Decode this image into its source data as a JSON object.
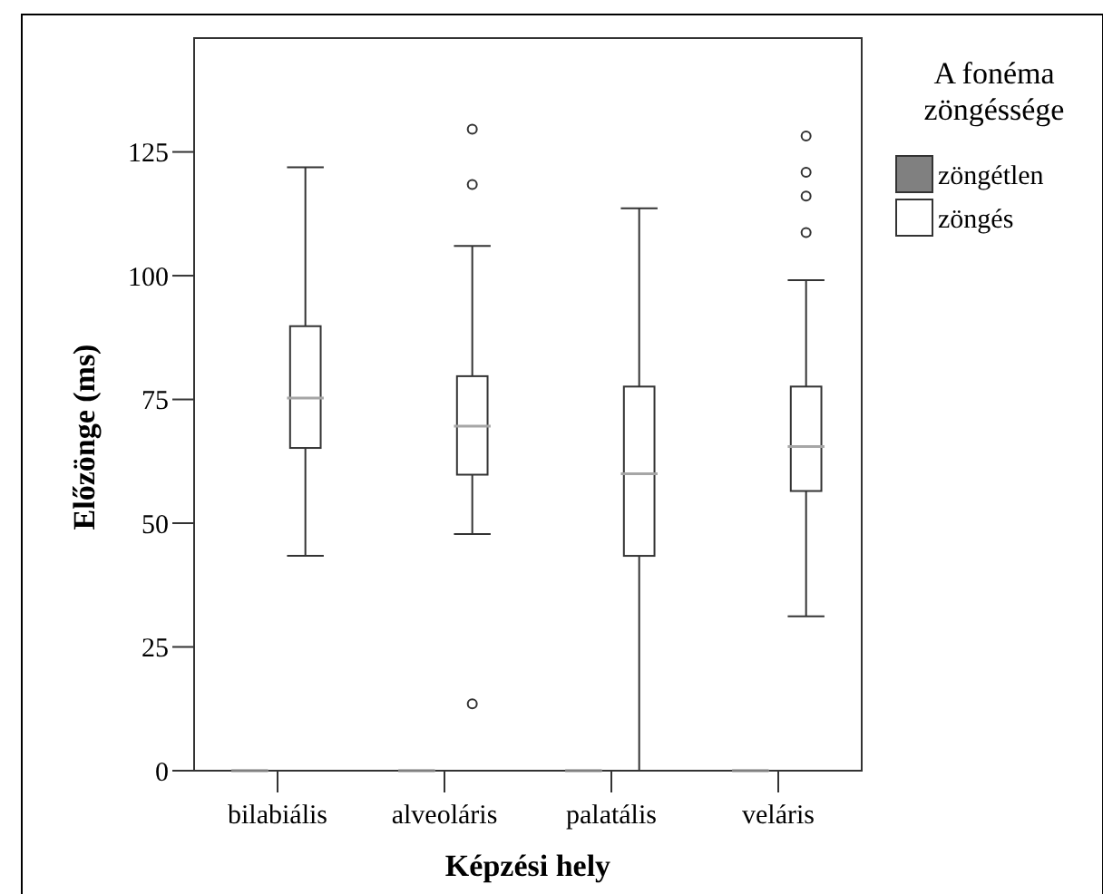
{
  "chart_data": {
    "type": "box",
    "xlabel": "Képzési hely",
    "ylabel": "Előzönge (ms)",
    "legend_title": "A fonéma zöngéssége",
    "legend": "right",
    "grid": false,
    "categories": [
      "bilabiális",
      "alveoláris",
      "palatális",
      "veláris"
    ],
    "ylim": [
      0,
      148
    ],
    "yticks": [
      0,
      25,
      50,
      75,
      100,
      125
    ],
    "series": [
      {
        "name": "zöngétlen",
        "color": "#808080",
        "boxes": [
          {
            "low": 0,
            "q1": 0,
            "median": 0,
            "q3": 0,
            "high": 0
          },
          {
            "low": 0,
            "q1": 0,
            "median": 0,
            "q3": 0,
            "high": 0
          },
          {
            "low": 0,
            "q1": 0,
            "median": 0,
            "q3": 0,
            "high": 0
          },
          {
            "low": 0,
            "q1": 0,
            "median": 0,
            "q3": 0,
            "high": 0
          }
        ]
      },
      {
        "name": "zöngés",
        "color": "#ffffff",
        "boxes": [
          {
            "low": 43.4,
            "q1": 65.2,
            "median": 75.3,
            "q3": 89.8,
            "high": 121.9
          },
          {
            "low": 47.8,
            "q1": 59.8,
            "median": 69.6,
            "q3": 79.7,
            "high": 106,
            "outliers": [
              129.6,
              118.4,
              13.5
            ]
          },
          {
            "low": 0,
            "q1": 43.4,
            "median": 60,
            "q3": 77.6,
            "high": 113.6
          },
          {
            "low": 31.2,
            "q1": 56.5,
            "median": 65.5,
            "q3": 77.6,
            "high": 99.1,
            "outliers": [
              128.2,
              120.9,
              116.1,
              108.7
            ]
          }
        ]
      }
    ]
  }
}
